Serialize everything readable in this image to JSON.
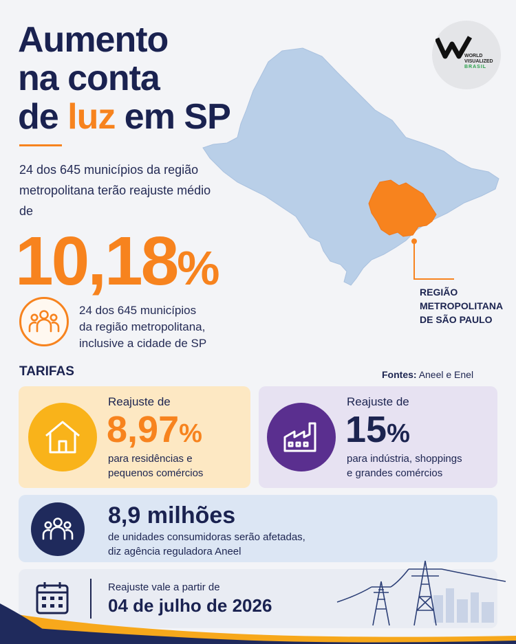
{
  "header": {
    "title_line1": "Aumento",
    "title_line2": "na conta",
    "title_line3_pre": "de ",
    "title_line3_accent": "luz",
    "title_line3_post": " em SP"
  },
  "intro": {
    "text": "24 dos 645 municípios da região metropolitana terão reajuste médio de",
    "big_value": "10,18",
    "big_unit": "%",
    "note_line1": "24 dos 645 municípios",
    "note_line2": "da região metropolitana,",
    "note_line3": "inclusive a cidade de SP"
  },
  "map": {
    "label_line1": "REGIÃO",
    "label_line2": "METROPOLITANA",
    "label_line3": "DE SÃO PAULO",
    "state_color": "#b9cfe8",
    "region_color": "#f7831e"
  },
  "logo": {
    "line1": "WORLD",
    "line2": "VISUALIZED",
    "line3": "BRASIL"
  },
  "tarifas": {
    "heading": "TARIFAS",
    "sources_label": "Fontes:",
    "sources_value": "Aneel e Enel"
  },
  "residential": {
    "label": "Reajuste de",
    "value": "8,97",
    "unit": "%",
    "desc_line1": "para residências e",
    "desc_line2": "pequenos comércios",
    "icon": "house-icon"
  },
  "industrial": {
    "label": "Reajuste de",
    "value": "15",
    "unit": "%",
    "desc_line1": "para indústria, shoppings",
    "desc_line2": "e grandes comércios",
    "icon": "factory-icon"
  },
  "consumers": {
    "title": "8,9 milhões",
    "desc_line1": "de unidades consumidoras serão afetadas,",
    "desc_line2": "diz agência reguladora Aneel",
    "icon": "people-icon"
  },
  "effective": {
    "label": "Reajuste vale a partir de",
    "date": "04 de julho de 2026",
    "icon": "calendar-icon"
  }
}
